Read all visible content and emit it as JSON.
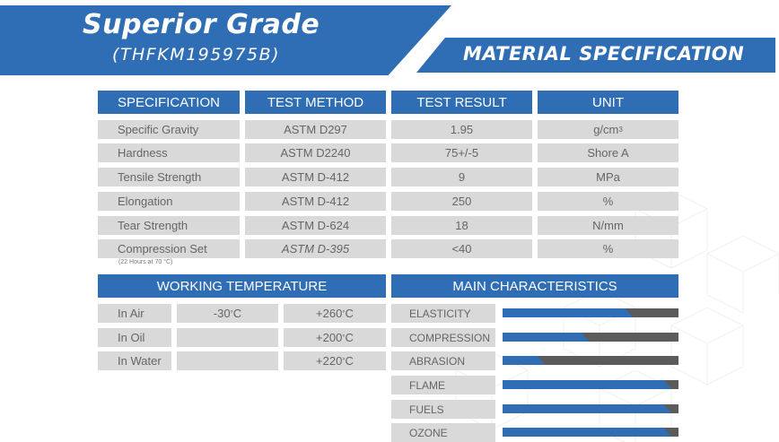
{
  "header": {
    "title": "Superior Grade",
    "code": "(THFKM195975B)",
    "section": "MATERIAL SPECIFICATION"
  },
  "spec_table": {
    "headers": [
      "SPECIFICATION",
      "TEST METHOD",
      "TEST RESULT",
      "UNIT"
    ],
    "rows": [
      {
        "spec": "Specific Gravity",
        "method": "ASTM D297",
        "result": "1.95",
        "unit": "g/cm",
        "unit_sup": "3"
      },
      {
        "spec": "Hardness",
        "method": "ASTM D2240",
        "result": "75+/-5",
        "unit": "Shore A",
        "unit_sup": ""
      },
      {
        "spec": "Tensile Strength",
        "method": "ASTM D-412",
        "result": "9",
        "unit": "MPa",
        "unit_sup": ""
      },
      {
        "spec": "Elongation",
        "method": "ASTM D-412",
        "result": "250",
        "unit": "%",
        "unit_sup": ""
      },
      {
        "spec": "Tear Strength",
        "method": "ASTM D-624",
        "result": "18",
        "unit": "N/mm",
        "unit_sup": ""
      },
      {
        "spec": "Compression Set",
        "method": "ASTM D-395",
        "result": "<40",
        "unit": "%",
        "unit_sup": ""
      }
    ],
    "compression_note": "(22 Hours at 70 °C)"
  },
  "working_temperature": {
    "header": "WORKING TEMPERATURE",
    "rows": [
      {
        "label": "In Air",
        "min": "-30",
        "max": "+260",
        "unit": "C",
        "deg": "°"
      },
      {
        "label": "In Oil",
        "min": "",
        "max": "+200",
        "unit": "C",
        "deg": "°"
      },
      {
        "label": "In Water",
        "min": "",
        "max": "+220",
        "unit": "C",
        "deg": "°"
      }
    ]
  },
  "main_characteristics": {
    "header": "MAIN CHARACTERISTICS",
    "items": [
      {
        "label": "ELASTICITY",
        "level": 0.74
      },
      {
        "label": "COMPRESSION",
        "level": 0.49
      },
      {
        "label": "ABRASION",
        "level": 0.24
      },
      {
        "label": "FLAME",
        "level": 0.96
      },
      {
        "label": "FUELS",
        "level": 0.96
      },
      {
        "label": "OZONE",
        "level": 0.96
      }
    ]
  },
  "colors": {
    "accent": "#2f6db5",
    "cell": "#d9d9d9",
    "track": "#5b5b5b"
  }
}
